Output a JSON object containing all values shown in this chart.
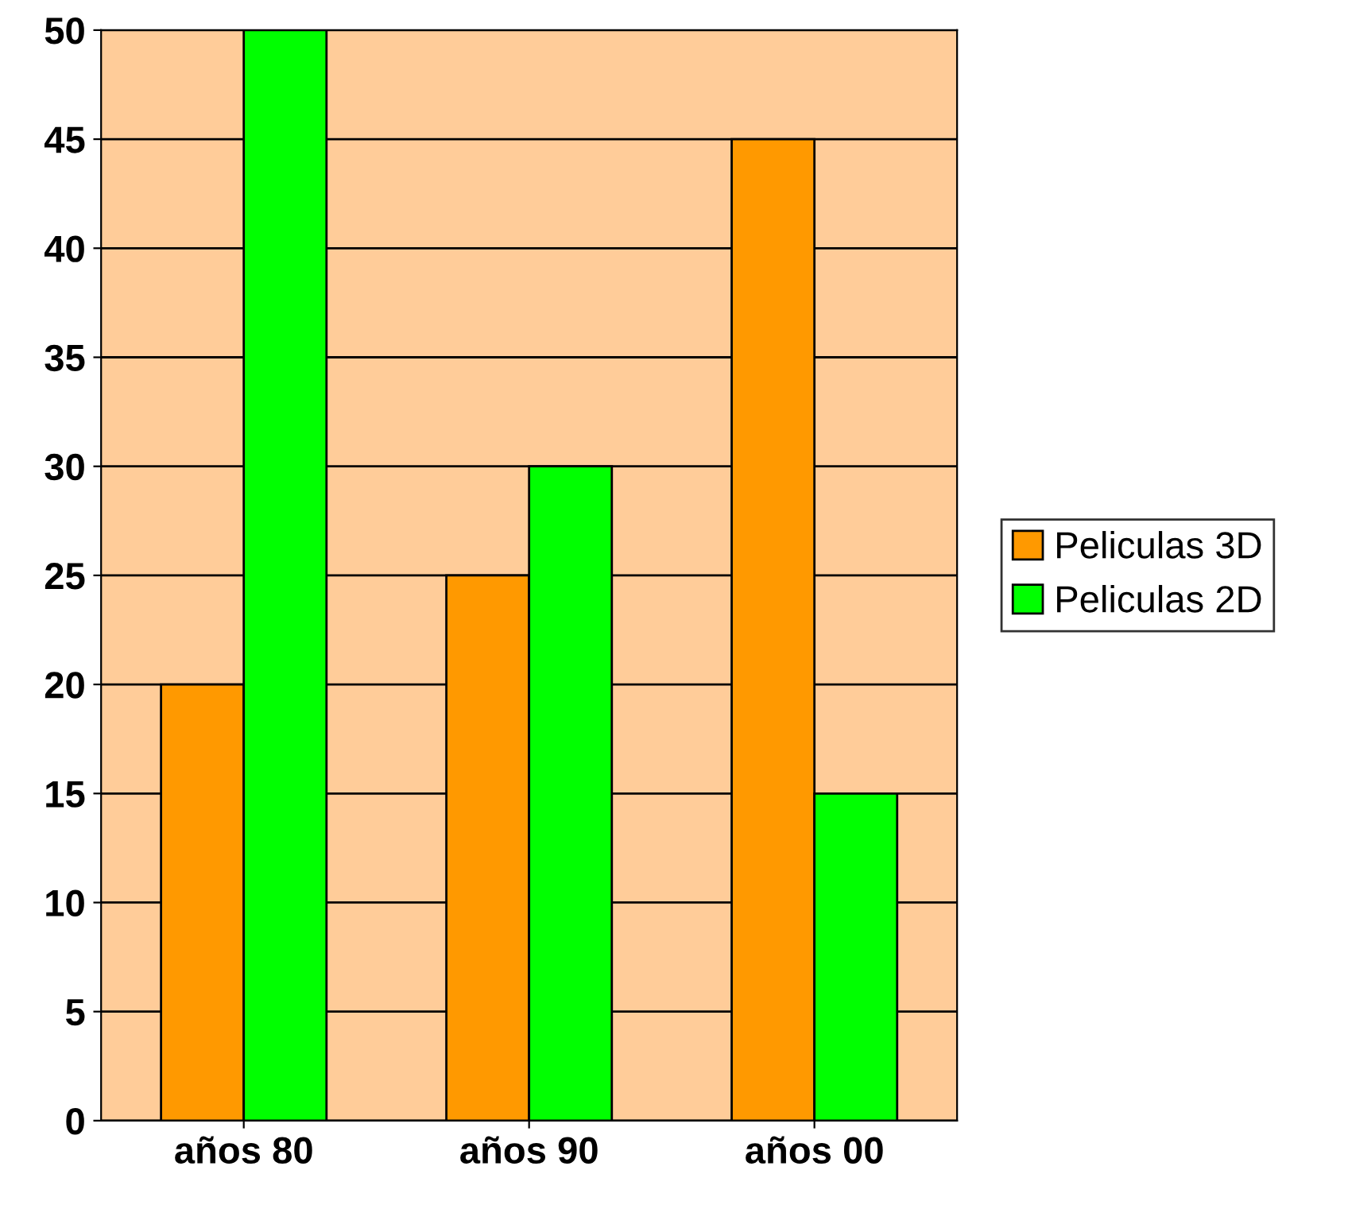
{
  "chart_data": {
    "type": "bar",
    "categories": [
      "años 80",
      "años 90",
      "años 00"
    ],
    "series": [
      {
        "name": "Peliculas 3D",
        "color": "#ff9900",
        "values": [
          20,
          25,
          45
        ]
      },
      {
        "name": "Peliculas 2D",
        "color": "#00ff00",
        "values": [
          50,
          30,
          15
        ]
      }
    ],
    "ylim": [
      0,
      50
    ],
    "yticks": [
      0,
      5,
      10,
      15,
      20,
      25,
      30,
      35,
      40,
      45,
      50
    ],
    "grid": "y",
    "legend": "right"
  }
}
